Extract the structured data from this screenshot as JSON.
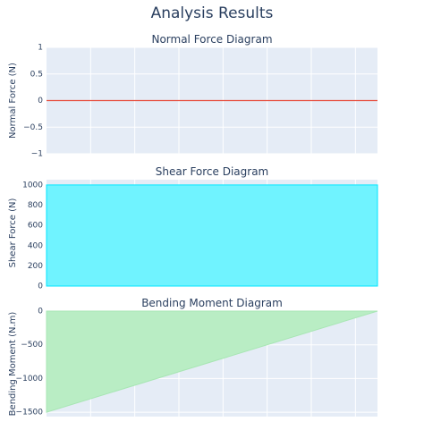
{
  "title": "Analysis Results",
  "chart_data": [
    {
      "type": "line",
      "title": "Normal Force Diagram",
      "y_label": "Normal Force (N)",
      "x": [
        0,
        1.5
      ],
      "values": [
        0,
        0
      ],
      "color": "#e74c3c",
      "xlim": [
        0,
        1.5
      ],
      "xticks": [
        0.2,
        0.4,
        0.6,
        0.8,
        1,
        1.2,
        1.4
      ],
      "ylim": [
        -1,
        1
      ],
      "yticks": [
        {
          "value": -1,
          "label": "−1"
        },
        {
          "value": -0.5,
          "label": "−0.5"
        },
        0,
        0.5,
        1
      ],
      "grid": true
    },
    {
      "type": "area",
      "title": "Shear Force Diagram",
      "y_label": "Shear Force (N)",
      "x": [
        0,
        1.5
      ],
      "values": [
        1000,
        1000
      ],
      "color": "#00e5ff",
      "fill_color": "#70f3ff",
      "xlim": [
        0,
        1.5
      ],
      "xticks": [
        0.2,
        0.4,
        0.6,
        0.8,
        1,
        1.2,
        1.4
      ],
      "ylim": [
        0,
        1052
      ],
      "yticks": [
        0,
        200,
        400,
        600,
        800,
        1000
      ],
      "grid": true
    },
    {
      "type": "area",
      "title": "Bending Moment Diagram",
      "y_label": "Bending Moment (N.m)",
      "x": [
        0,
        1.5
      ],
      "values": [
        -1500,
        0
      ],
      "color": "#a8e6b4",
      "fill_color": "#b9edc4",
      "xlim": [
        0,
        1.5
      ],
      "xticks": [
        0.2,
        0.4,
        0.6,
        0.8,
        1,
        1.2,
        1.4
      ],
      "ylim": [
        -1565,
        0
      ],
      "yticks": [
        {
          "value": -1500,
          "label": "−1500"
        },
        {
          "value": -1000,
          "label": "−1000"
        },
        {
          "value": -500,
          "label": "−500"
        },
        0
      ],
      "grid": true
    }
  ]
}
